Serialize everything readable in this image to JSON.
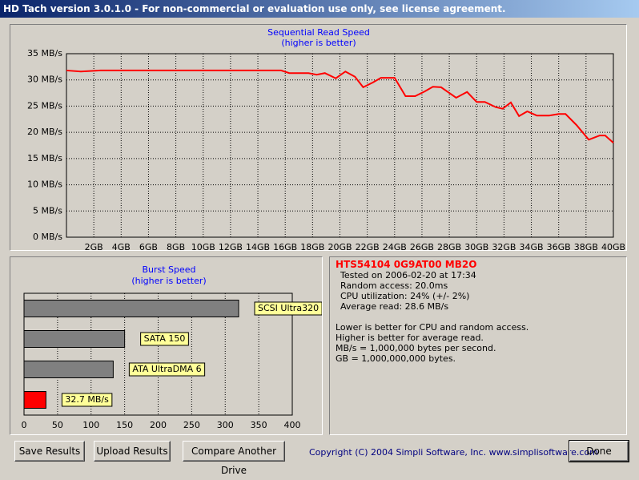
{
  "window": {
    "title": "HD Tach version 3.0.1.0  - For non-commercial or evaluation use only, see license agreement."
  },
  "read_chart": {
    "type": "line",
    "title": "Sequential Read Speed",
    "subtitle": "(higher is better)",
    "color": "#ff0000",
    "grid": true,
    "x": [
      0,
      1.05,
      2.5,
      15.7,
      16.3,
      17.7,
      18.3,
      18.9,
      19.7,
      20.4,
      21.1,
      21.7,
      22.4,
      23.0,
      24.0,
      24.8,
      25.5,
      26.2,
      26.8,
      27.4,
      28.5,
      29.3,
      30.0,
      30.6,
      31.4,
      31.9,
      32.5,
      33.1,
      33.7,
      34.4,
      35.3,
      36.0,
      36.5,
      37.3,
      38.2,
      39.0,
      39.4,
      40
    ],
    "values": [
      31.8,
      31.6,
      31.8,
      31.8,
      31.3,
      31.3,
      31.0,
      31.3,
      30.3,
      31.6,
      30.6,
      28.6,
      29.5,
      30.4,
      30.4,
      26.9,
      26.9,
      27.8,
      28.7,
      28.6,
      26.6,
      27.7,
      25.8,
      25.8,
      24.8,
      24.5,
      25.7,
      23.1,
      24.0,
      23.2,
      23.2,
      23.5,
      23.5,
      21.4,
      18.6,
      19.4,
      19.4,
      18.0
    ],
    "xlim": [
      0,
      40
    ],
    "xticks": [
      {
        "value": 2,
        "label": "2GB"
      },
      {
        "value": 4,
        "label": "4GB"
      },
      {
        "value": 6,
        "label": "6GB"
      },
      {
        "value": 8,
        "label": "8GB"
      },
      {
        "value": 10,
        "label": "10GB"
      },
      {
        "value": 12,
        "label": "12GB"
      },
      {
        "value": 14,
        "label": "14GB"
      },
      {
        "value": 16,
        "label": "16GB"
      },
      {
        "value": 18,
        "label": "18GB"
      },
      {
        "value": 20,
        "label": "20GB"
      },
      {
        "value": 22,
        "label": "22GB"
      },
      {
        "value": 24,
        "label": "24GB"
      },
      {
        "value": 26,
        "label": "26GB"
      },
      {
        "value": 28,
        "label": "28GB"
      },
      {
        "value": 30,
        "label": "30GB"
      },
      {
        "value": 32,
        "label": "32GB"
      },
      {
        "value": 34,
        "label": "34GB"
      },
      {
        "value": 36,
        "label": "36GB"
      },
      {
        "value": 38,
        "label": "38GB"
      },
      {
        "value": 40,
        "label": "40GB"
      }
    ],
    "ylim": [
      0,
      35
    ],
    "yticks": [
      {
        "value": 0,
        "label": "0 MB/s"
      },
      {
        "value": 5,
        "label": "5 MB/s"
      },
      {
        "value": 10,
        "label": "10 MB/s"
      },
      {
        "value": 15,
        "label": "15 MB/s"
      },
      {
        "value": 20,
        "label": "20 MB/s"
      },
      {
        "value": 25,
        "label": "25 MB/s"
      },
      {
        "value": 30,
        "label": "30 MB/s"
      },
      {
        "value": 35,
        "label": "35 MB/s"
      }
    ]
  },
  "burst_chart": {
    "type": "hbar",
    "title": "Burst Speed",
    "subtitle": "(higher is better)",
    "grid": true,
    "categories": [
      "SCSI Ultra320",
      "SATA 150",
      "ATA UltraDMA 6",
      null
    ],
    "values": [
      320,
      150,
      133,
      32.7
    ],
    "value_labels": [
      null,
      null,
      null,
      "32.7 MB/s"
    ],
    "colors": [
      "#808080",
      "#808080",
      "#808080",
      "#ff0000"
    ],
    "xlim": [
      0,
      400
    ],
    "xticks": [
      0,
      50,
      100,
      150,
      200,
      250,
      300,
      350,
      400
    ]
  },
  "drive_info": {
    "model": "HTS54104 0G9AT00 MB2O",
    "lines": [
      "Tested on 2006-02-20 at 17:34",
      "Random access: 20.0ms",
      "CPU utilization: 24% (+/- 2%)",
      "Average read: 28.6 MB/s"
    ],
    "notes": [
      "Lower is better for CPU and random access.",
      "Higher is better for average read.",
      "MB/s = 1,000,000 bytes per second.",
      "GB = 1,000,000,000 bytes."
    ]
  },
  "buttons": [
    "Save Results",
    "Upload Results",
    "Compare Another Drive"
  ],
  "copyright": "Copyright (C) 2004 Simpli Software, Inc. www.simplisoftware.com",
  "done": "Done"
}
